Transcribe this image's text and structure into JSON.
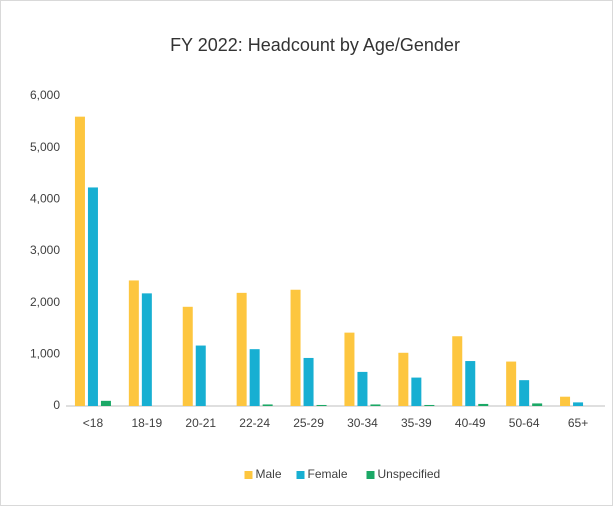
{
  "chart_data": {
    "type": "bar",
    "title": "FY 2022: Headcount by Age/Gender",
    "categories": [
      "<18",
      "18-19",
      "20-21",
      "22-24",
      "25-29",
      "30-34",
      "35-39",
      "40-49",
      "50-64",
      "65+"
    ],
    "series": [
      {
        "name": "Male",
        "color": "#fdc63f",
        "values": [
          5600,
          2430,
          1920,
          2190,
          2250,
          1420,
          1030,
          1350,
          860,
          180
        ]
      },
      {
        "name": "Female",
        "color": "#17afd2",
        "values": [
          4230,
          2180,
          1170,
          1100,
          930,
          660,
          550,
          870,
          500,
          70
        ]
      },
      {
        "name": "Unspecified",
        "color": "#1ba866",
        "values": [
          100,
          0,
          0,
          30,
          20,
          30,
          20,
          40,
          50,
          0
        ]
      }
    ],
    "ylim": [
      0,
      6000
    ],
    "yticks": [
      0,
      {
        "value": 1000,
        "label": "1,000"
      },
      {
        "value": 2000,
        "label": "2,000"
      },
      {
        "value": 3000,
        "label": "3,000"
      },
      {
        "value": 4000,
        "label": "4,000"
      },
      {
        "value": 5000,
        "label": "5,000"
      },
      {
        "value": 6000,
        "label": "6,000"
      }
    ],
    "grid": false,
    "legend": "bottom"
  }
}
